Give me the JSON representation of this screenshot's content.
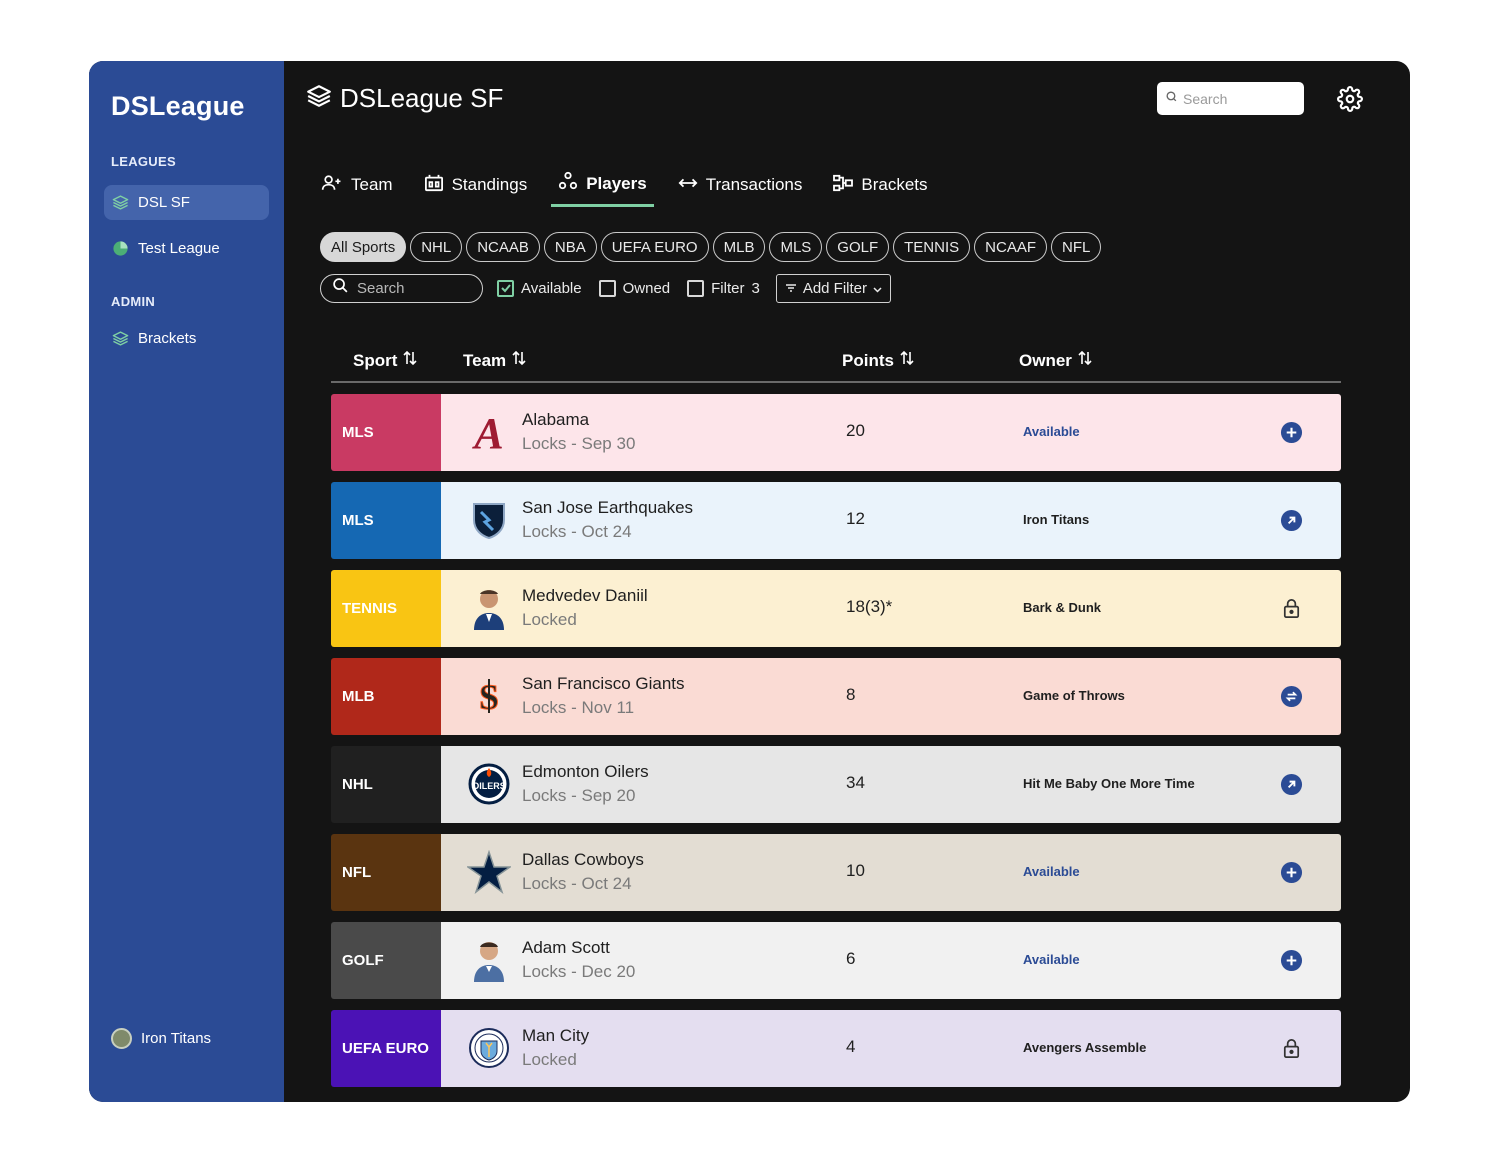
{
  "sidebar": {
    "brand": "DSLeague",
    "leagues_label": "LEAGUES",
    "leagues": [
      {
        "label": "DSL SF",
        "icon": "layers-icon"
      },
      {
        "label": "Test League",
        "icon": "pie-icon"
      }
    ],
    "admin_label": "ADMIN",
    "admin": [
      {
        "label": "Brackets",
        "icon": "layers-icon"
      }
    ],
    "user": {
      "name": "Iron Titans"
    }
  },
  "header": {
    "title": "DSLeague SF",
    "search_placeholder": "Search"
  },
  "tabs": [
    {
      "label": "Team",
      "icon": "user-add-icon"
    },
    {
      "label": "Standings",
      "icon": "scoreboard-icon"
    },
    {
      "label": "Players",
      "icon": "players-icon",
      "active": true
    },
    {
      "label": "Transactions",
      "icon": "arrows-icon"
    },
    {
      "label": "Brackets",
      "icon": "bracket-icon"
    }
  ],
  "chips": [
    "All Sports",
    "NHL",
    "NCAAB",
    "NBA",
    "UEFA EURO",
    "MLB",
    "MLS",
    "GOLF",
    "TENNIS",
    "NCAAF",
    "NFL"
  ],
  "filters": {
    "search_placeholder": "Search",
    "available": "Available",
    "owned": "Owned",
    "filter": "Filter",
    "filter_count": "3",
    "add_filter": "Add Filter"
  },
  "table": {
    "columns": [
      "Sport",
      "Team",
      "Points",
      "Owner"
    ],
    "rows": [
      {
        "sport": "MLS",
        "sport_color": "#c93a63",
        "bg": "#fde5ea",
        "team": "Alabama",
        "sub": "Locks - Sep 30",
        "points": "20",
        "owner": "Available",
        "action": "add-icon"
      },
      {
        "sport": "MLS",
        "sport_color": "#1568b3",
        "bg": "#eaf3fb",
        "team": "San Jose Earthquakes",
        "sub": "Locks - Oct 24",
        "points": "12",
        "owner": "Iron Titans",
        "action": "arrow-icon"
      },
      {
        "sport": "TENNIS",
        "sport_color": "#f9c513",
        "bg": "#fcf0d2",
        "team": "Medvedev Daniil",
        "sub": "Locked",
        "points": "18(3)*",
        "owner": "Bark & Dunk",
        "action": "lock-icon"
      },
      {
        "sport": "MLB",
        "sport_color": "#b0281a",
        "bg": "#fadbd4",
        "team": "San Francisco Giants",
        "sub": "Locks - Nov 11",
        "points": "8",
        "owner": "Game of Throws",
        "action": "swap-icon"
      },
      {
        "sport": "NHL",
        "sport_color": "#202020",
        "bg": "#e6e6e6",
        "team": "Edmonton Oilers",
        "sub": "Locks - Sep 20",
        "points": "34",
        "owner": "Hit Me Baby One More Time",
        "action": "arrow-icon"
      },
      {
        "sport": "NFL",
        "sport_color": "#5a3410",
        "bg": "#e3ddd3",
        "team": "Dallas Cowboys",
        "sub": "Locks - Oct 24",
        "points": "10",
        "owner": "Available",
        "action": "add-icon"
      },
      {
        "sport": "GOLF",
        "sport_color": "#4a4a4a",
        "bg": "#f1f1f1",
        "team": "Adam Scott",
        "sub": "Locks - Dec 20",
        "points": "6",
        "owner": "Available",
        "action": "add-icon"
      },
      {
        "sport": "UEFA EURO",
        "sport_color": "#4b12b5",
        "bg": "#e4def0",
        "team": "Man City",
        "sub": "Locked",
        "points": "4",
        "owner": "Avengers Assemble",
        "action": "lock-icon"
      }
    ]
  }
}
